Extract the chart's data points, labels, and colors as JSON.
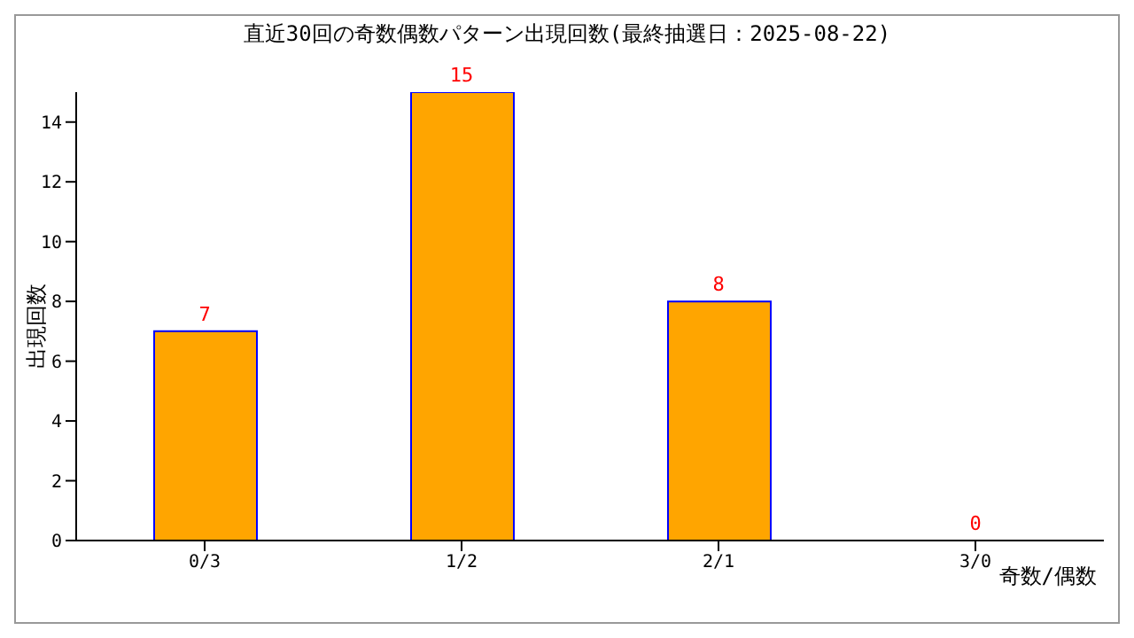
{
  "chart_data": {
    "type": "bar",
    "title": "直近30回の奇数偶数パターン出現回数(最終抽選日：2025-08-22)",
    "xlabel": "奇数/偶数",
    "ylabel": "出現回数",
    "categories": [
      "0/3",
      "1/2",
      "2/1",
      "3/0"
    ],
    "values": [
      7,
      15,
      8,
      0
    ],
    "color": "#ffa500",
    "ylim": [
      0,
      15
    ],
    "yticks": [
      0,
      2,
      4,
      6,
      8,
      10,
      12,
      14
    ],
    "grid": false,
    "data_labels": true
  }
}
